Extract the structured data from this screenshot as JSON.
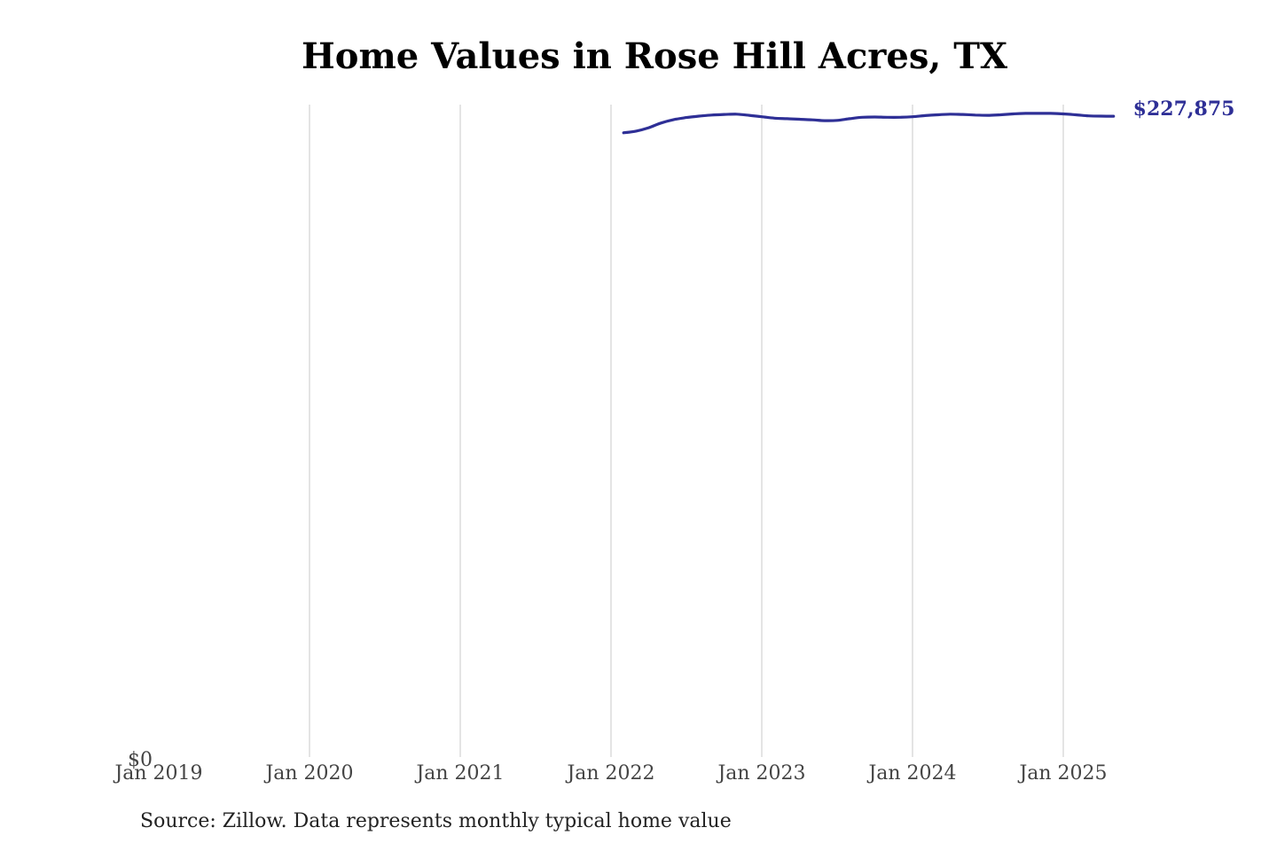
{
  "title": "Home Values in Rose Hill Acres, TX",
  "source": "Source: Zillow. Data represents monthly typical home value",
  "colors": {
    "line": "#2e2f96",
    "grid": "#c8c8c8",
    "tick_text": "#444444"
  },
  "chart_data": {
    "type": "line",
    "title": "Home Values in Rose Hill Acres, TX",
    "xlabel": "",
    "ylabel": "",
    "x_ticks": [
      "Jan 2019",
      "Jan 2020",
      "Jan 2021",
      "Jan 2022",
      "Jan 2023",
      "Jan 2024",
      "Jan 2025"
    ],
    "y_ticks": [
      "$0"
    ],
    "ylim": [
      0,
      232000
    ],
    "grid": "vertical",
    "end_label": "$227,875",
    "series": [
      {
        "points": [
          [
            "2022-02",
            222000
          ],
          [
            "2022-03",
            222600
          ],
          [
            "2022-04",
            223800
          ],
          [
            "2022-05",
            225500
          ],
          [
            "2022-06",
            226700
          ],
          [
            "2022-07",
            227400
          ],
          [
            "2022-08",
            227900
          ],
          [
            "2022-09",
            228300
          ],
          [
            "2022-10",
            228500
          ],
          [
            "2022-11",
            228600
          ],
          [
            "2022-12",
            228200
          ],
          [
            "2023-01",
            227700
          ],
          [
            "2023-02",
            227200
          ],
          [
            "2023-03",
            227000
          ],
          [
            "2023-04",
            226800
          ],
          [
            "2023-05",
            226600
          ],
          [
            "2023-06",
            226300
          ],
          [
            "2023-07",
            226400
          ],
          [
            "2023-08",
            227000
          ],
          [
            "2023-09",
            227500
          ],
          [
            "2023-10",
            227600
          ],
          [
            "2023-11",
            227500
          ],
          [
            "2023-12",
            227500
          ],
          [
            "2024-01",
            227700
          ],
          [
            "2024-02",
            228100
          ],
          [
            "2024-03",
            228400
          ],
          [
            "2024-04",
            228600
          ],
          [
            "2024-05",
            228500
          ],
          [
            "2024-06",
            228300
          ],
          [
            "2024-07",
            228200
          ],
          [
            "2024-08",
            228400
          ],
          [
            "2024-09",
            228700
          ],
          [
            "2024-10",
            228900
          ],
          [
            "2024-11",
            228900
          ],
          [
            "2024-12",
            228900
          ],
          [
            "2025-01",
            228700
          ],
          [
            "2025-02",
            228400
          ],
          [
            "2025-03",
            228000
          ],
          [
            "2025-04",
            227900
          ],
          [
            "2025-05",
            227875
          ]
        ]
      }
    ]
  }
}
